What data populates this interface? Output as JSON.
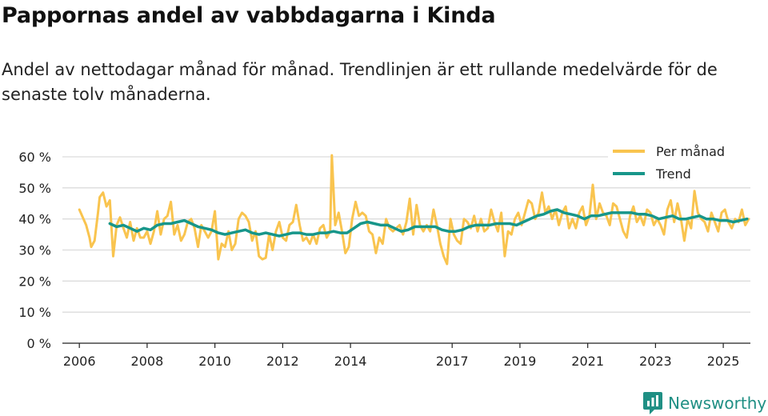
{
  "title": "Pappornas andel av vabbdagarna i Kinda",
  "subtitle": "Andel av nettodagar månad för månad. Trendlinjen är ett rullande medelvärde för de senaste tolv månaderna.",
  "brand": "Newsworthy",
  "chart_data": {
    "type": "line",
    "xlabel": "",
    "ylabel": "",
    "xlim": [
      2005.5,
      2025.8
    ],
    "ylim": [
      0,
      60
    ],
    "ticks_y": [
      {
        "value": 0,
        "label": "0 %"
      },
      {
        "value": 10,
        "label": "10 %"
      },
      {
        "value": 20,
        "label": "20 %"
      },
      {
        "value": 30,
        "label": "30 %"
      },
      {
        "value": 40,
        "label": "40 %"
      },
      {
        "value": 50,
        "label": "50 %"
      },
      {
        "value": 60,
        "label": "60 %"
      }
    ],
    "ticks_x": [
      {
        "value": 2006,
        "label": "2006"
      },
      {
        "value": 2008,
        "label": "2008"
      },
      {
        "value": 2010,
        "label": "2010"
      },
      {
        "value": 2012,
        "label": "2012"
      },
      {
        "value": 2014,
        "label": "2014"
      },
      {
        "value": 2017,
        "label": "2017"
      },
      {
        "value": 2019,
        "label": "2019"
      },
      {
        "value": 2021,
        "label": "2021"
      },
      {
        "value": 2023,
        "label": "2023"
      },
      {
        "value": 2025,
        "label": "2025"
      }
    ],
    "legend": {
      "position": "top-right"
    },
    "series": [
      {
        "name": "Per månad",
        "color": "#f9c44f",
        "points": [
          [
            2006.0,
            43
          ],
          [
            2006.2,
            38
          ],
          [
            2006.3,
            34
          ],
          [
            2006.35,
            31
          ],
          [
            2006.45,
            33
          ],
          [
            2006.55,
            42
          ],
          [
            2006.6,
            47
          ],
          [
            2006.7,
            48.5
          ],
          [
            2006.8,
            44
          ],
          [
            2006.9,
            46
          ],
          [
            2007.0,
            28
          ],
          [
            2007.1,
            38
          ],
          [
            2007.2,
            40.5
          ],
          [
            2007.3,
            37
          ],
          [
            2007.4,
            34
          ],
          [
            2007.5,
            39
          ],
          [
            2007.6,
            33
          ],
          [
            2007.7,
            37
          ],
          [
            2007.8,
            34
          ],
          [
            2007.9,
            34
          ],
          [
            2008.0,
            36
          ],
          [
            2008.1,
            32
          ],
          [
            2008.2,
            36
          ],
          [
            2008.3,
            42.5
          ],
          [
            2008.4,
            35
          ],
          [
            2008.5,
            40
          ],
          [
            2008.6,
            41
          ],
          [
            2008.7,
            45.5
          ],
          [
            2008.8,
            35
          ],
          [
            2008.9,
            38
          ],
          [
            2009.0,
            33
          ],
          [
            2009.1,
            35
          ],
          [
            2009.2,
            39
          ],
          [
            2009.3,
            40
          ],
          [
            2009.4,
            37
          ],
          [
            2009.5,
            31
          ],
          [
            2009.6,
            38
          ],
          [
            2009.7,
            36
          ],
          [
            2009.8,
            34
          ],
          [
            2009.9,
            36
          ],
          [
            2010.0,
            42.5
          ],
          [
            2010.1,
            27
          ],
          [
            2010.2,
            32
          ],
          [
            2010.3,
            31
          ],
          [
            2010.4,
            36
          ],
          [
            2010.5,
            30
          ],
          [
            2010.6,
            32
          ],
          [
            2010.7,
            40
          ],
          [
            2010.8,
            42
          ],
          [
            2010.9,
            41
          ],
          [
            2011.0,
            39
          ],
          [
            2011.1,
            33
          ],
          [
            2011.2,
            36
          ],
          [
            2011.3,
            28
          ],
          [
            2011.4,
            27
          ],
          [
            2011.5,
            27.5
          ],
          [
            2011.6,
            35
          ],
          [
            2011.7,
            30
          ],
          [
            2011.8,
            36
          ],
          [
            2011.9,
            39
          ],
          [
            2012.0,
            34
          ],
          [
            2012.1,
            33
          ],
          [
            2012.2,
            38
          ],
          [
            2012.3,
            39
          ],
          [
            2012.4,
            44.5
          ],
          [
            2012.5,
            38
          ],
          [
            2012.6,
            33
          ],
          [
            2012.7,
            34
          ],
          [
            2012.8,
            32
          ],
          [
            2012.9,
            35
          ],
          [
            2013.0,
            32
          ],
          [
            2013.1,
            37
          ],
          [
            2013.2,
            38
          ],
          [
            2013.3,
            34
          ],
          [
            2013.4,
            36
          ],
          [
            2013.45,
            60.5
          ],
          [
            2013.55,
            38
          ],
          [
            2013.65,
            42
          ],
          [
            2013.75,
            36
          ],
          [
            2013.85,
            29
          ],
          [
            2013.95,
            31
          ],
          [
            2014.05,
            40
          ],
          [
            2014.15,
            45.5
          ],
          [
            2014.25,
            41
          ],
          [
            2014.35,
            42
          ],
          [
            2014.45,
            41
          ],
          [
            2014.55,
            36
          ],
          [
            2014.65,
            35
          ],
          [
            2014.75,
            29
          ],
          [
            2014.85,
            34
          ],
          [
            2014.95,
            32
          ],
          [
            2015.05,
            40
          ],
          [
            2015.15,
            37
          ],
          [
            2015.25,
            36
          ],
          [
            2015.35,
            37
          ],
          [
            2015.45,
            38
          ],
          [
            2015.55,
            35
          ],
          [
            2015.65,
            39
          ],
          [
            2015.75,
            46.5
          ],
          [
            2015.85,
            35
          ],
          [
            2015.95,
            44.5
          ],
          [
            2016.05,
            38
          ],
          [
            2016.15,
            36
          ],
          [
            2016.25,
            38
          ],
          [
            2016.35,
            36
          ],
          [
            2016.45,
            43
          ],
          [
            2016.55,
            38
          ],
          [
            2016.65,
            32
          ],
          [
            2016.75,
            28
          ],
          [
            2016.85,
            25.5
          ],
          [
            2016.95,
            40
          ],
          [
            2017.05,
            35
          ],
          [
            2017.15,
            33
          ],
          [
            2017.25,
            32
          ],
          [
            2017.35,
            40
          ],
          [
            2017.45,
            39
          ],
          [
            2017.55,
            37
          ],
          [
            2017.65,
            41
          ],
          [
            2017.75,
            36
          ],
          [
            2017.85,
            40
          ],
          [
            2017.95,
            36
          ],
          [
            2018.05,
            37
          ],
          [
            2018.15,
            43
          ],
          [
            2018.25,
            39
          ],
          [
            2018.35,
            36
          ],
          [
            2018.45,
            42
          ],
          [
            2018.55,
            28
          ],
          [
            2018.65,
            36
          ],
          [
            2018.75,
            35
          ],
          [
            2018.85,
            40
          ],
          [
            2018.95,
            42
          ],
          [
            2019.05,
            38
          ],
          [
            2019.15,
            42
          ],
          [
            2019.25,
            46
          ],
          [
            2019.35,
            45
          ],
          [
            2019.45,
            40
          ],
          [
            2019.55,
            42
          ],
          [
            2019.65,
            48.5
          ],
          [
            2019.75,
            42
          ],
          [
            2019.85,
            44
          ],
          [
            2019.95,
            40
          ],
          [
            2020.05,
            43
          ],
          [
            2020.15,
            38
          ],
          [
            2020.25,
            42
          ],
          [
            2020.35,
            44
          ],
          [
            2020.45,
            37
          ],
          [
            2020.55,
            40
          ],
          [
            2020.65,
            37
          ],
          [
            2020.75,
            42
          ],
          [
            2020.85,
            44
          ],
          [
            2020.95,
            38
          ],
          [
            2021.05,
            41
          ],
          [
            2021.15,
            51
          ],
          [
            2021.25,
            40
          ],
          [
            2021.35,
            45
          ],
          [
            2021.45,
            42
          ],
          [
            2021.55,
            41
          ],
          [
            2021.65,
            38
          ],
          [
            2021.75,
            45
          ],
          [
            2021.85,
            44
          ],
          [
            2021.95,
            40
          ],
          [
            2022.05,
            36
          ],
          [
            2022.15,
            34
          ],
          [
            2022.25,
            41
          ],
          [
            2022.35,
            44
          ],
          [
            2022.45,
            39
          ],
          [
            2022.55,
            41
          ],
          [
            2022.65,
            38
          ],
          [
            2022.75,
            43
          ],
          [
            2022.85,
            42
          ],
          [
            2022.95,
            38
          ],
          [
            2023.05,
            40
          ],
          [
            2023.15,
            38
          ],
          [
            2023.25,
            35
          ],
          [
            2023.35,
            43
          ],
          [
            2023.45,
            46
          ],
          [
            2023.55,
            39
          ],
          [
            2023.65,
            45
          ],
          [
            2023.75,
            40
          ],
          [
            2023.85,
            33
          ],
          [
            2023.95,
            40
          ],
          [
            2024.05,
            37
          ],
          [
            2024.15,
            49
          ],
          [
            2024.25,
            42
          ],
          [
            2024.35,
            40
          ],
          [
            2024.45,
            39
          ],
          [
            2024.55,
            36
          ],
          [
            2024.65,
            42
          ],
          [
            2024.75,
            39
          ],
          [
            2024.85,
            36
          ],
          [
            2024.95,
            42
          ],
          [
            2025.05,
            43
          ],
          [
            2025.15,
            39
          ],
          [
            2025.25,
            37
          ],
          [
            2025.35,
            40
          ],
          [
            2025.45,
            39
          ],
          [
            2025.55,
            43
          ],
          [
            2025.65,
            38
          ],
          [
            2025.75,
            40
          ]
        ]
      },
      {
        "name": "Trend",
        "color": "#17968a",
        "points": [
          [
            2006.9,
            38.5
          ],
          [
            2007.1,
            37.5
          ],
          [
            2007.3,
            38
          ],
          [
            2007.5,
            37
          ],
          [
            2007.7,
            36
          ],
          [
            2007.9,
            37
          ],
          [
            2008.1,
            36.5
          ],
          [
            2008.3,
            38
          ],
          [
            2008.5,
            38.5
          ],
          [
            2008.7,
            38.5
          ],
          [
            2008.9,
            39
          ],
          [
            2009.1,
            39.5
          ],
          [
            2009.3,
            38.5
          ],
          [
            2009.5,
            37.5
          ],
          [
            2009.7,
            37
          ],
          [
            2009.9,
            36.5
          ],
          [
            2010.1,
            35.5
          ],
          [
            2010.3,
            35
          ],
          [
            2010.5,
            35.5
          ],
          [
            2010.7,
            36
          ],
          [
            2010.9,
            36.5
          ],
          [
            2011.1,
            35.5
          ],
          [
            2011.3,
            35
          ],
          [
            2011.5,
            35.5
          ],
          [
            2011.7,
            35
          ],
          [
            2011.9,
            34.5
          ],
          [
            2012.1,
            35
          ],
          [
            2012.3,
            35.5
          ],
          [
            2012.5,
            35.5
          ],
          [
            2012.7,
            35
          ],
          [
            2012.9,
            35
          ],
          [
            2013.1,
            35.5
          ],
          [
            2013.3,
            35.5
          ],
          [
            2013.5,
            36
          ],
          [
            2013.7,
            35.5
          ],
          [
            2013.9,
            35.5
          ],
          [
            2014.1,
            37
          ],
          [
            2014.3,
            38.5
          ],
          [
            2014.5,
            39
          ],
          [
            2014.7,
            38.5
          ],
          [
            2014.9,
            38
          ],
          [
            2015.1,
            38
          ],
          [
            2015.3,
            37
          ],
          [
            2015.5,
            36
          ],
          [
            2015.7,
            36.5
          ],
          [
            2015.9,
            37.5
          ],
          [
            2016.1,
            37.5
          ],
          [
            2016.3,
            37.5
          ],
          [
            2016.5,
            37.5
          ],
          [
            2016.7,
            36.5
          ],
          [
            2016.9,
            36
          ],
          [
            2017.1,
            36
          ],
          [
            2017.3,
            36.5
          ],
          [
            2017.5,
            37.5
          ],
          [
            2017.7,
            38
          ],
          [
            2017.9,
            38
          ],
          [
            2018.1,
            38
          ],
          [
            2018.3,
            38.5
          ],
          [
            2018.5,
            38.5
          ],
          [
            2018.7,
            38.5
          ],
          [
            2018.9,
            38
          ],
          [
            2019.1,
            39
          ],
          [
            2019.3,
            40
          ],
          [
            2019.5,
            41
          ],
          [
            2019.7,
            41.5
          ],
          [
            2019.9,
            42.5
          ],
          [
            2020.1,
            43
          ],
          [
            2020.3,
            42
          ],
          [
            2020.5,
            41.5
          ],
          [
            2020.7,
            41
          ],
          [
            2020.9,
            40
          ],
          [
            2021.1,
            41
          ],
          [
            2021.3,
            41
          ],
          [
            2021.5,
            41.5
          ],
          [
            2021.7,
            42
          ],
          [
            2021.9,
            42
          ],
          [
            2022.1,
            42
          ],
          [
            2022.3,
            42
          ],
          [
            2022.5,
            41.5
          ],
          [
            2022.7,
            41.5
          ],
          [
            2022.9,
            41
          ],
          [
            2023.1,
            40
          ],
          [
            2023.3,
            40.5
          ],
          [
            2023.5,
            41
          ],
          [
            2023.7,
            40
          ],
          [
            2023.9,
            40
          ],
          [
            2024.1,
            40.5
          ],
          [
            2024.3,
            41
          ],
          [
            2024.5,
            40
          ],
          [
            2024.7,
            40
          ],
          [
            2024.9,
            39.5
          ],
          [
            2025.1,
            39.5
          ],
          [
            2025.3,
            39
          ],
          [
            2025.5,
            39.5
          ],
          [
            2025.7,
            40
          ]
        ]
      }
    ]
  }
}
